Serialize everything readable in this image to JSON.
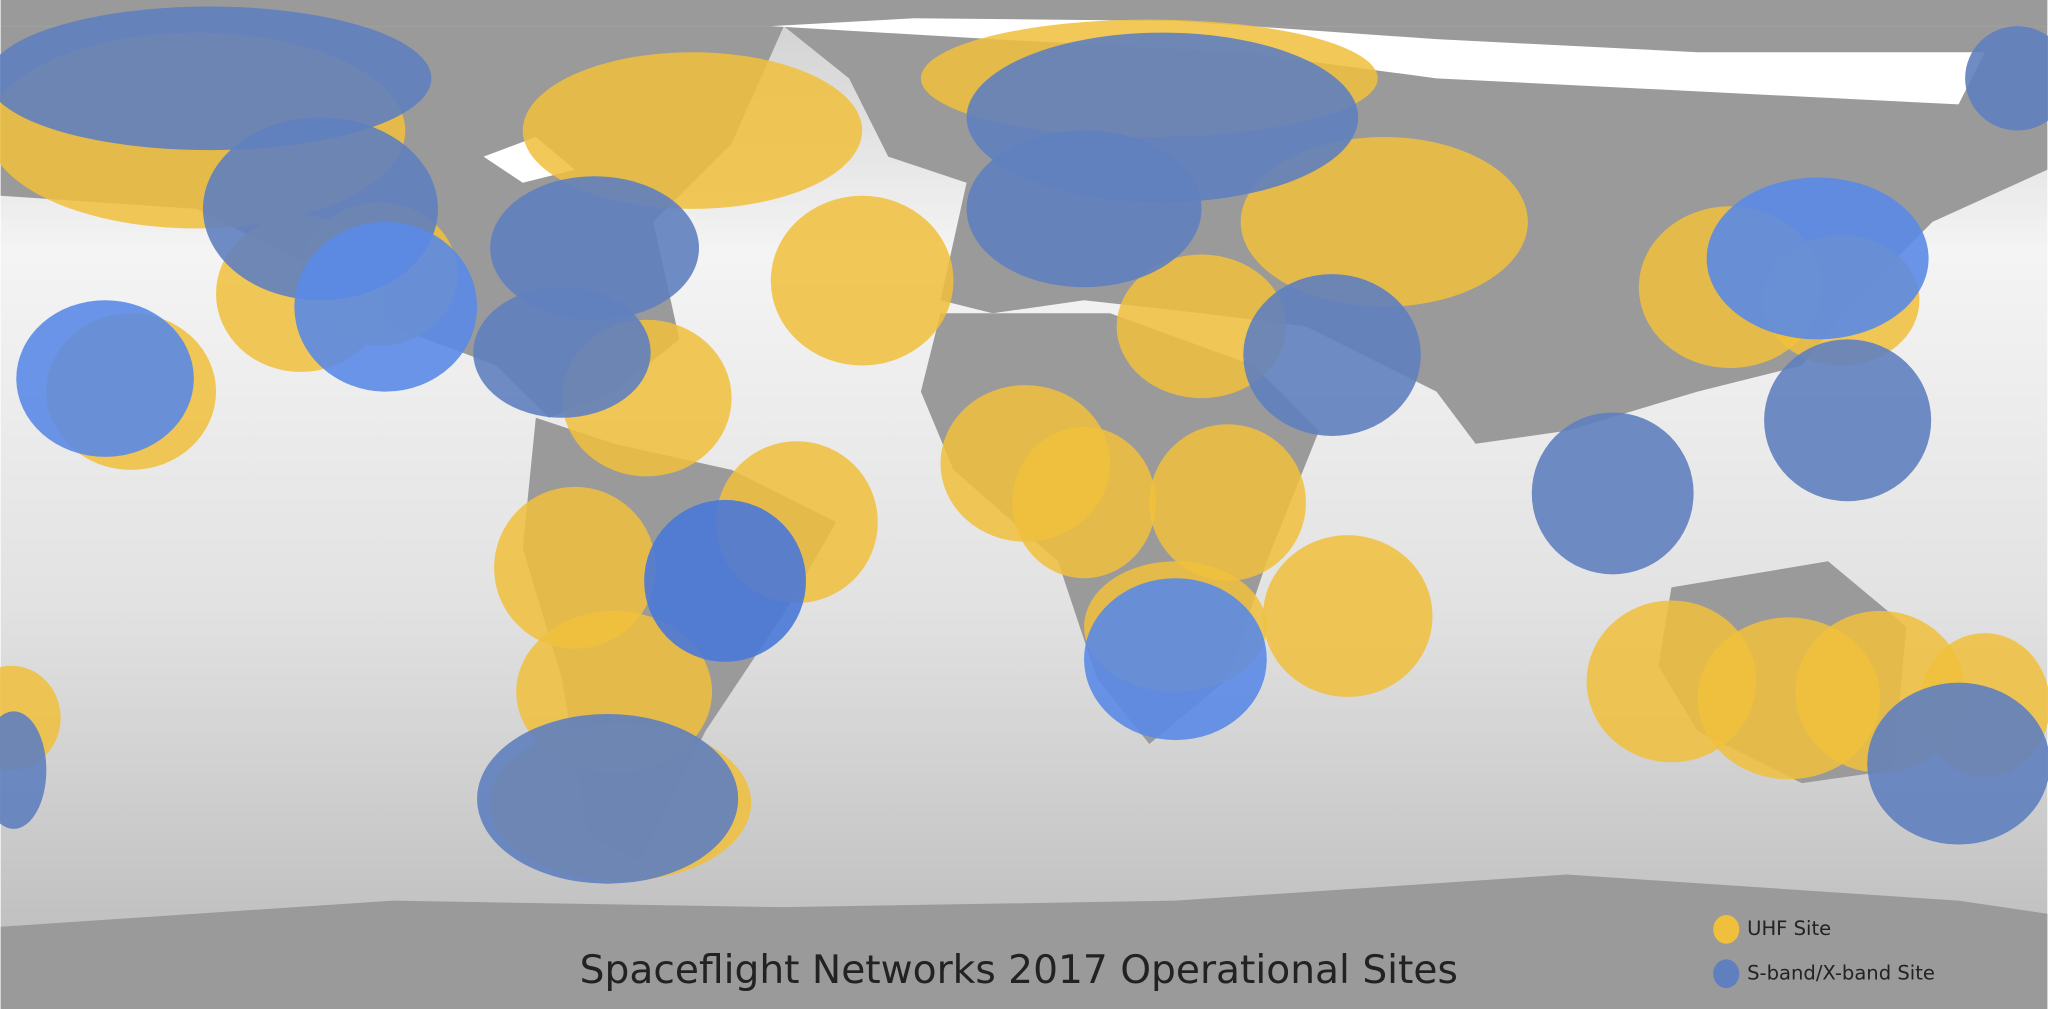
{
  "title": "Spaceflight Networks 2017 Operational Sites",
  "legend": [
    {
      "label": "UHF Site"
    },
    {
      "label": "S-band/X-band Site"
    }
  ]
}
